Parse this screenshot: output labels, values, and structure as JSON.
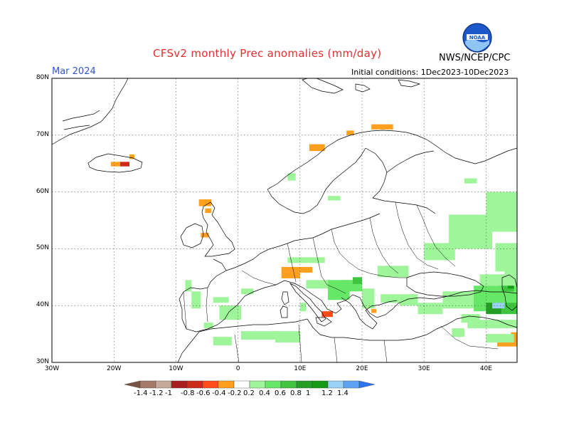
{
  "header": {
    "title": "CFSv2 monthly Prec anomalies (mm/day)",
    "month": "Mar 2024",
    "initial_conditions": "Initial conditions: 1Dec2023-10Dec2023",
    "agency": "NWS/NCEP/CPC",
    "logo_text": "NOAA"
  },
  "map": {
    "projection": "lat-lon",
    "lon_range": [
      -30,
      45
    ],
    "lat_range": [
      30,
      80
    ],
    "lat_labels": [
      "80N",
      "70N",
      "60N",
      "50N",
      "40N",
      "30N"
    ],
    "lon_labels": [
      "30W",
      "20W",
      "10W",
      "0",
      "10E",
      "20E",
      "30E",
      "40E"
    ],
    "grid": "dotted",
    "anomaly_cells": [
      {
        "lon": -20.5,
        "lat": 64.5,
        "w": 1.5,
        "h": 0.8,
        "value": -0.4
      },
      {
        "lon": -19.0,
        "lat": 64.5,
        "w": 1.5,
        "h": 0.8,
        "value": -0.8
      },
      {
        "lon": -17.5,
        "lat": 65.8,
        "w": 0.8,
        "h": 0.8,
        "value": -0.4
      },
      {
        "lon": 11.5,
        "lat": 67.2,
        "w": 2.5,
        "h": 1.2,
        "value": -0.4
      },
      {
        "lon": 17.5,
        "lat": 70.0,
        "w": 1.2,
        "h": 0.8,
        "value": -0.4
      },
      {
        "lon": 21.5,
        "lat": 71.0,
        "w": 3.5,
        "h": 0.9,
        "value": -0.4
      },
      {
        "lon": -6.3,
        "lat": 57.5,
        "w": 2.0,
        "h": 1.2,
        "value": -0.4
      },
      {
        "lon": -5.3,
        "lat": 56.3,
        "w": 1.0,
        "h": 0.8,
        "value": -0.4
      },
      {
        "lon": -6.0,
        "lat": 52.0,
        "w": 1.3,
        "h": 0.8,
        "value": -0.4
      },
      {
        "lon": 7.0,
        "lat": 45.8,
        "w": 5.0,
        "h": 1.0,
        "value": -0.4
      },
      {
        "lon": 7.0,
        "lat": 44.8,
        "w": 3.0,
        "h": 1.0,
        "value": -0.4
      },
      {
        "lon": 13.5,
        "lat": 38.0,
        "w": 1.8,
        "h": 1.0,
        "value": -0.6
      },
      {
        "lon": 21.5,
        "lat": 38.7,
        "w": 0.8,
        "h": 0.7,
        "value": -0.4
      },
      {
        "lon": 41.8,
        "lat": 32.8,
        "w": 3.2,
        "h": 1.6,
        "value": -0.4
      },
      {
        "lon": 44.0,
        "lat": 34.3,
        "w": 1.0,
        "h": 1.0,
        "value": -0.4
      },
      {
        "lon": 36.5,
        "lat": 61.5,
        "w": 2.0,
        "h": 0.9,
        "value": 0.2
      },
      {
        "lon": 8.0,
        "lat": 62.0,
        "w": 1.3,
        "h": 1.3,
        "value": 0.2
      },
      {
        "lon": 14.5,
        "lat": 58.5,
        "w": 2.0,
        "h": 0.8,
        "value": 0.2
      },
      {
        "lon": -8.5,
        "lat": 42.5,
        "w": 1.0,
        "h": 2.0,
        "value": 0.2
      },
      {
        "lon": -7.5,
        "lat": 39.5,
        "w": 1.5,
        "h": 3.0,
        "value": 0.3
      },
      {
        "lon": -4.0,
        "lat": 40.5,
        "w": 2.5,
        "h": 1.0,
        "value": 0.2
      },
      {
        "lon": -3.0,
        "lat": 37.5,
        "w": 3.5,
        "h": 2.5,
        "value": 0.25
      },
      {
        "lon": 0.5,
        "lat": 42.0,
        "w": 2.0,
        "h": 1.0,
        "value": 0.2
      },
      {
        "lon": -5.5,
        "lat": 36.0,
        "w": 1.5,
        "h": 1.0,
        "value": 0.2
      },
      {
        "lon": -4.0,
        "lat": 33.0,
        "w": 3.0,
        "h": 1.5,
        "value": 0.2
      },
      {
        "lon": 0.5,
        "lat": 34.0,
        "w": 6.0,
        "h": 1.5,
        "value": 0.2
      },
      {
        "lon": 6.0,
        "lat": 33.5,
        "w": 4.0,
        "h": 2.0,
        "value": 0.25
      },
      {
        "lon": 10.0,
        "lat": 39.0,
        "w": 1.0,
        "h": 1.5,
        "value": 0.2
      },
      {
        "lon": 8.0,
        "lat": 47.5,
        "w": 6.0,
        "h": 1.0,
        "value": 0.2
      },
      {
        "lon": 11.0,
        "lat": 43.0,
        "w": 3.5,
        "h": 1.5,
        "value": 0.3
      },
      {
        "lon": 14.5,
        "lat": 41.0,
        "w": 3.5,
        "h": 3.5,
        "value": 0.4
      },
      {
        "lon": 17.0,
        "lat": 42.5,
        "w": 3.0,
        "h": 2.0,
        "value": 0.5
      },
      {
        "lon": 18.5,
        "lat": 43.8,
        "w": 1.5,
        "h": 1.2,
        "value": 0.6
      },
      {
        "lon": 20.0,
        "lat": 39.5,
        "w": 2.0,
        "h": 3.5,
        "value": 0.35
      },
      {
        "lon": 22.5,
        "lat": 45.0,
        "w": 5.0,
        "h": 2.0,
        "value": 0.3
      },
      {
        "lon": 23.0,
        "lat": 40.5,
        "w": 3.0,
        "h": 1.5,
        "value": 0.2
      },
      {
        "lon": 26.0,
        "lat": 40.0,
        "w": 3.0,
        "h": 2.0,
        "value": 0.2
      },
      {
        "lon": 29.0,
        "lat": 38.5,
        "w": 4.0,
        "h": 2.0,
        "value": 0.25
      },
      {
        "lon": 33.0,
        "lat": 39.5,
        "w": 5.0,
        "h": 3.0,
        "value": 0.3
      },
      {
        "lon": 38.0,
        "lat": 39.0,
        "w": 7.0,
        "h": 4.5,
        "value": 0.5
      },
      {
        "lon": 36.0,
        "lat": 37.0,
        "w": 3.0,
        "h": 1.5,
        "value": 0.3
      },
      {
        "lon": 40.0,
        "lat": 38.5,
        "w": 2.5,
        "h": 2.0,
        "value": 0.8
      },
      {
        "lon": 42.5,
        "lat": 38.5,
        "w": 2.5,
        "h": 2.0,
        "value": 0.7
      },
      {
        "lon": 41.0,
        "lat": 39.5,
        "w": 2.0,
        "h": 1.0,
        "value": 1.2
      },
      {
        "lon": 42.5,
        "lat": 42.5,
        "w": 2.0,
        "h": 1.5,
        "value": 0.6
      },
      {
        "lon": 43.5,
        "lat": 43.0,
        "w": 1.0,
        "h": 1.0,
        "value": 1.1
      },
      {
        "lon": 42.0,
        "lat": 43.5,
        "w": 1.0,
        "h": 1.0,
        "value": 0.8
      },
      {
        "lon": 39.0,
        "lat": 43.5,
        "w": 6.0,
        "h": 2.0,
        "value": 0.2
      },
      {
        "lon": 37.0,
        "lat": 36.0,
        "w": 8.0,
        "h": 1.5,
        "value": 0.2
      },
      {
        "lon": 40.0,
        "lat": 33.5,
        "w": 4.5,
        "h": 1.5,
        "value": 0.2
      },
      {
        "lon": 34.5,
        "lat": 34.5,
        "w": 2.0,
        "h": 1.5,
        "value": 0.2
      },
      {
        "lon": 30.0,
        "lat": 48.0,
        "w": 5.0,
        "h": 3.0,
        "value": 0.2
      },
      {
        "lon": 34.0,
        "lat": 50.0,
        "w": 7.0,
        "h": 6.0,
        "value": 0.2
      },
      {
        "lon": 40.0,
        "lat": 53.0,
        "w": 5.0,
        "h": 7.0,
        "value": 0.2
      },
      {
        "lon": 37.5,
        "lat": 52.0,
        "w": 3.0,
        "h": 2.0,
        "value": 0.3
      },
      {
        "lon": 41.5,
        "lat": 46.0,
        "w": 3.5,
        "h": 5.0,
        "value": 0.2
      },
      {
        "lon": 43.0,
        "lat": 44.5,
        "w": 2.0,
        "h": 2.0,
        "value": 0.3
      }
    ]
  },
  "colorbar": {
    "labels": [
      "-1.4",
      "-1.2",
      "-1",
      "-0.8",
      "-0.6",
      "-0.4",
      "-0.2",
      "0.2",
      "0.4",
      "0.6",
      "0.8",
      "1",
      "1.2",
      "1.4"
    ],
    "colors": [
      "#7a5545",
      "#a57b68",
      "#c8a999",
      "#a61e1e",
      "#cc2a1a",
      "#ff4a1a",
      "#ff9f1e",
      "#ffffff",
      "#9ff59a",
      "#66e866",
      "#3fc43f",
      "#239d23",
      "#149a14",
      "#9ad2f5",
      "#5ca4f3",
      "#2d74ee"
    ]
  }
}
